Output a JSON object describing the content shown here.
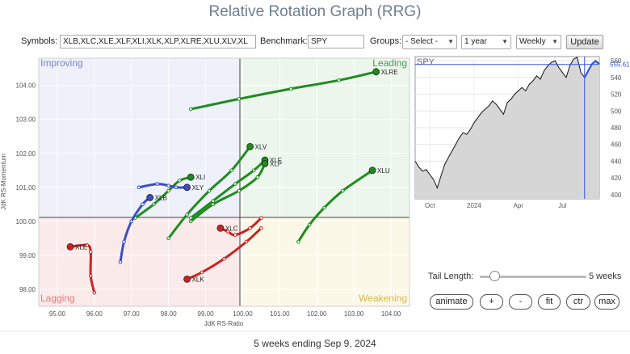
{
  "title": "Relative Rotation Graph (RRG)",
  "controls": {
    "symbols_label": "Symbols:",
    "symbols_value": "XLB,XLC,XLE,XLF,XLI,XLK,XLP,XLRE,XLU,XLV,XL",
    "benchmark_label": "Benchmark:",
    "benchmark_value": "SPY",
    "groups_label": "Groups:",
    "groups_value": "- Select -",
    "period_value": "1 year",
    "interval_value": "Weekly",
    "update_label": "Update"
  },
  "rrg": {
    "quadrants": {
      "improving": {
        "label": "Improving",
        "color": "#7b86c8"
      },
      "leading": {
        "label": "Leading",
        "color": "#3fa04a"
      },
      "lagging": {
        "label": "Lagging",
        "color": "#e07b7b"
      },
      "weakening": {
        "label": "Weakening",
        "color": "#d9b84a"
      }
    },
    "x_axis": {
      "label": "JdK RS-Ratio",
      "ticks": [
        "95.00",
        "96.00",
        "97.00",
        "98.00",
        "99.00",
        "100.00",
        "101.00",
        "102.00",
        "103.00",
        "104.00"
      ],
      "range": [
        94.5,
        104.5
      ]
    },
    "y_axis": {
      "label": "JdK RS-Momentum",
      "ticks": [
        "98.00",
        "99.00",
        "100.00",
        "101.00",
        "102.00",
        "103.00",
        "104.00"
      ],
      "range": [
        97.5,
        104.8
      ]
    },
    "series": [
      {
        "name": "XLRE",
        "color": "#1e8c1e",
        "points": [
          [
            98.6,
            103.3
          ],
          [
            99.9,
            103.6
          ],
          [
            101.3,
            103.9
          ],
          [
            102.6,
            104.15
          ],
          [
            103.6,
            104.4
          ]
        ]
      },
      {
        "name": "XLV",
        "color": "#1e8c1e",
        "points": [
          [
            98.0,
            99.5
          ],
          [
            98.5,
            100.2
          ],
          [
            99.1,
            100.9
          ],
          [
            99.7,
            101.5
          ],
          [
            100.2,
            102.2
          ]
        ]
      },
      {
        "name": "XLF",
        "color": "#1e8c1e",
        "points": [
          [
            98.6,
            100.1
          ],
          [
            99.2,
            100.6
          ],
          [
            99.8,
            101.1
          ],
          [
            100.3,
            101.5
          ],
          [
            100.6,
            101.8
          ]
        ]
      },
      {
        "name": "XLP",
        "color": "#1e8c1e",
        "points": [
          [
            98.6,
            100.0
          ],
          [
            99.2,
            100.5
          ],
          [
            99.9,
            100.9
          ],
          [
            100.4,
            101.3
          ],
          [
            100.6,
            101.7
          ]
        ]
      },
      {
        "name": "XLU",
        "color": "#1e8c1e",
        "points": [
          [
            101.5,
            99.4
          ],
          [
            101.8,
            99.9
          ],
          [
            102.2,
            100.4
          ],
          [
            102.7,
            100.9
          ],
          [
            103.5,
            101.5
          ]
        ]
      },
      {
        "name": "XLI",
        "color": "#1e8c1e",
        "points": [
          [
            97.1,
            100.1
          ],
          [
            97.6,
            100.5
          ],
          [
            98.0,
            100.9
          ],
          [
            98.3,
            101.2
          ],
          [
            98.6,
            101.3
          ]
        ]
      },
      {
        "name": "XLY",
        "color": "#3a4fc4",
        "points": [
          [
            97.2,
            101.0
          ],
          [
            97.7,
            101.1
          ],
          [
            98.0,
            101.05
          ],
          [
            98.2,
            101.0
          ],
          [
            98.5,
            101.0
          ]
        ]
      },
      {
        "name": "XLB",
        "color": "#3a4fc4",
        "points": [
          [
            96.7,
            98.8
          ],
          [
            96.8,
            99.4
          ],
          [
            97.0,
            100.0
          ],
          [
            97.3,
            100.5
          ],
          [
            97.5,
            100.7
          ]
        ]
      },
      {
        "name": "XLC",
        "color": "#cc2222",
        "points": [
          [
            100.5,
            100.1
          ],
          [
            100.2,
            99.8
          ],
          [
            99.8,
            99.6
          ],
          [
            99.6,
            99.7
          ],
          [
            99.4,
            99.8
          ]
        ]
      },
      {
        "name": "XLK",
        "color": "#cc2222",
        "points": [
          [
            100.5,
            99.8
          ],
          [
            100.1,
            99.4
          ],
          [
            99.5,
            98.9
          ],
          [
            98.9,
            98.5
          ],
          [
            98.5,
            98.3
          ]
        ]
      },
      {
        "name": "XLE",
        "color": "#cc2222",
        "points": [
          [
            96.0,
            97.9
          ],
          [
            95.9,
            98.4
          ],
          [
            95.9,
            99.1
          ],
          [
            95.8,
            99.3
          ],
          [
            95.35,
            99.25
          ]
        ]
      }
    ]
  },
  "spy": {
    "label": "SPY",
    "current_value_label": "555.61",
    "y_ticks": [
      "400",
      "420",
      "440",
      "460",
      "480",
      "500",
      "520",
      "540",
      "560"
    ],
    "y_range": [
      395,
      565
    ],
    "x_labels": [
      "Oct",
      "2024",
      "Apr",
      "Jul"
    ],
    "prices": [
      440,
      433,
      428,
      430,
      424,
      418,
      408,
      422,
      436,
      444,
      452,
      460,
      468,
      474,
      472,
      478,
      486,
      492,
      498,
      502,
      506,
      512,
      508,
      502,
      496,
      510,
      514,
      520,
      524,
      528,
      524,
      532,
      536,
      542,
      538,
      548,
      554,
      558,
      560,
      552,
      546,
      540,
      554,
      562,
      564,
      546,
      540,
      548,
      556,
      560,
      556
    ]
  },
  "tail": {
    "label": "Tail Length:",
    "value_label": "5 weeks",
    "value": 5
  },
  "buttons": [
    "animate",
    "+",
    "-",
    "fit",
    "ctr",
    "max"
  ],
  "footer": "5 weeks ending Sep 9, 2024"
}
